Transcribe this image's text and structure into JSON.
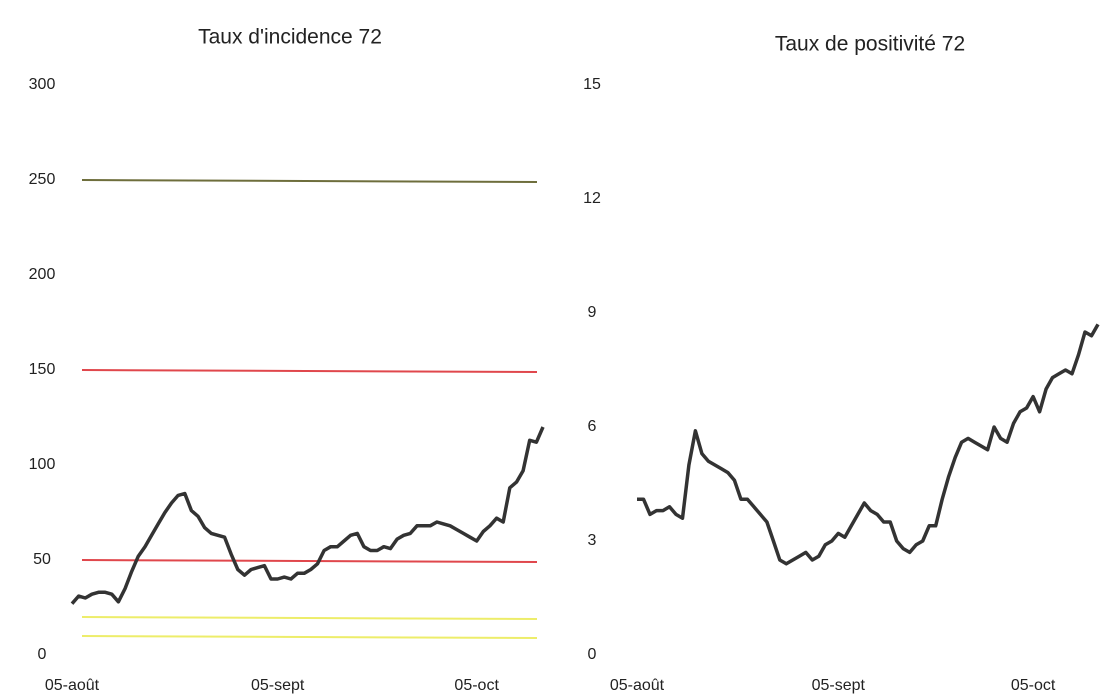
{
  "chart_data": [
    {
      "type": "line",
      "title": "Taux d'incidence 72",
      "categories": [
        "05-août",
        null,
        null,
        null,
        null,
        null,
        null,
        null,
        null,
        null,
        null,
        null,
        null,
        null,
        null,
        null,
        null,
        null,
        null,
        null,
        null,
        null,
        null,
        null,
        null,
        null,
        null,
        null,
        null,
        null,
        null,
        "05-sept",
        null,
        null,
        null,
        null,
        null,
        null,
        null,
        null,
        null,
        null,
        null,
        null,
        null,
        null,
        null,
        null,
        null,
        null,
        null,
        null,
        null,
        null,
        null,
        null,
        null,
        null,
        null,
        null,
        null,
        "05-oct",
        null,
        null,
        null,
        null,
        null,
        null,
        null,
        null,
        null,
        null
      ],
      "values": [
        27,
        31,
        30,
        32,
        33,
        33,
        32,
        28,
        35,
        44,
        52,
        57,
        63,
        69,
        75,
        80,
        84,
        85,
        76,
        73,
        67,
        64,
        63,
        62,
        53,
        45,
        42,
        45,
        46,
        47,
        40,
        40,
        41,
        40,
        43,
        43,
        45,
        48,
        55,
        57,
        57,
        60,
        63,
        64,
        57,
        55,
        55,
        57,
        56,
        61,
        63,
        64,
        68,
        68,
        68,
        70,
        69,
        68,
        66,
        64,
        62,
        60,
        65,
        68,
        72,
        70,
        88,
        91,
        97,
        113,
        112,
        120
      ],
      "color": "#333333",
      "ylim": [
        0,
        300
      ],
      "yticks": [
        0,
        50,
        100,
        150,
        200,
        250,
        300
      ],
      "thresholds": [
        {
          "value": 250,
          "color": "#6e6e3c"
        },
        {
          "value": 150,
          "color": "#e0474c"
        },
        {
          "value": 50,
          "color": "#e0474c"
        },
        {
          "value": 20,
          "color": "#eded6a"
        },
        {
          "value": 10,
          "color": "#eded6a"
        }
      ]
    },
    {
      "type": "line",
      "title": "Taux de positivité 72",
      "categories": [
        "05-août",
        null,
        null,
        null,
        null,
        null,
        null,
        null,
        null,
        null,
        null,
        null,
        null,
        null,
        null,
        null,
        null,
        null,
        null,
        null,
        null,
        null,
        null,
        null,
        null,
        null,
        null,
        null,
        null,
        null,
        null,
        "05-sept",
        null,
        null,
        null,
        null,
        null,
        null,
        null,
        null,
        null,
        null,
        null,
        null,
        null,
        null,
        null,
        null,
        null,
        null,
        null,
        null,
        null,
        null,
        null,
        null,
        null,
        null,
        null,
        null,
        null,
        "05-oct",
        null,
        null,
        null,
        null,
        null,
        null,
        null,
        null,
        null,
        null
      ],
      "values": [
        4.1,
        4.1,
        3.7,
        3.8,
        3.8,
        3.9,
        3.7,
        3.6,
        5.0,
        5.9,
        5.3,
        5.1,
        5.0,
        4.9,
        4.8,
        4.6,
        4.1,
        4.1,
        3.9,
        3.7,
        3.5,
        3.0,
        2.5,
        2.4,
        2.5,
        2.6,
        2.7,
        2.5,
        2.6,
        2.9,
        3.0,
        3.2,
        3.1,
        3.4,
        3.7,
        4.0,
        3.8,
        3.7,
        3.5,
        3.5,
        3.0,
        2.8,
        2.7,
        2.9,
        3.0,
        3.4,
        3.4,
        4.1,
        4.7,
        5.2,
        5.6,
        5.7,
        5.6,
        5.5,
        5.4,
        6.0,
        5.7,
        5.6,
        6.1,
        6.4,
        6.5,
        6.8,
        6.4,
        7.0,
        7.3,
        7.4,
        7.5,
        7.4,
        7.9,
        8.5,
        8.4,
        8.7
      ],
      "color": "#333333",
      "ylim": [
        0,
        15
      ],
      "yticks": [
        0,
        3,
        6,
        9,
        12,
        15
      ]
    }
  ]
}
